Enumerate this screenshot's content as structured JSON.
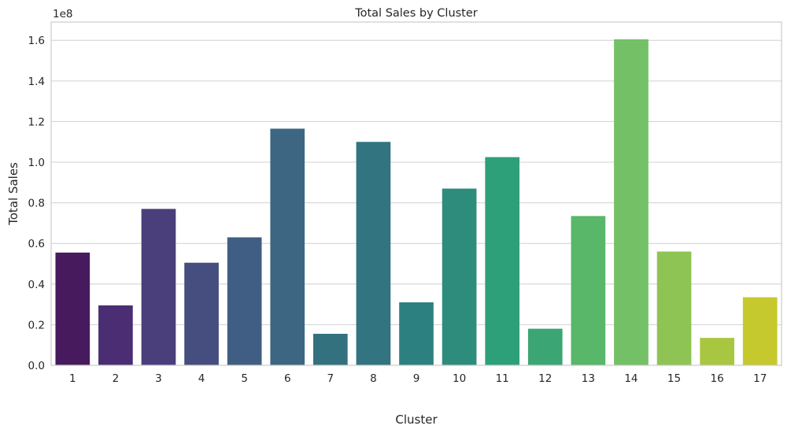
{
  "chart_data": {
    "type": "bar",
    "title": "Total Sales by Cluster",
    "xlabel": "Cluster",
    "ylabel": "Total Sales",
    "y_offset_label": "1e8",
    "categories": [
      "1",
      "2",
      "3",
      "4",
      "5",
      "6",
      "7",
      "8",
      "9",
      "10",
      "11",
      "12",
      "13",
      "14",
      "15",
      "16",
      "17"
    ],
    "values": [
      55500000,
      29500000,
      77000000,
      50500000,
      63000000,
      116500000,
      15500000,
      110000000,
      31000000,
      87000000,
      102500000,
      18000000,
      73500000,
      160500000,
      56000000,
      13500000,
      33500000
    ],
    "colors": [
      "#471a5e",
      "#4a2d73",
      "#4b3f7b",
      "#454e7e",
      "#405e83",
      "#3c6682",
      "#33717f",
      "#327480",
      "#2d8080",
      "#2e8c7d",
      "#2ea079",
      "#3ca574",
      "#58b769",
      "#74c067",
      "#8ec453",
      "#a9c640",
      "#c6c92e"
    ],
    "yticks": [
      0,
      0.2,
      0.4,
      0.6,
      0.8,
      1.0,
      1.2,
      1.4,
      1.6
    ],
    "ytick_labels": [
      "0.0",
      "0.2",
      "0.4",
      "0.6",
      "0.8",
      "1.0",
      "1.2",
      "1.4",
      "1.6"
    ],
    "ylim": [
      0,
      169000000
    ],
    "grid": "horizontal"
  }
}
